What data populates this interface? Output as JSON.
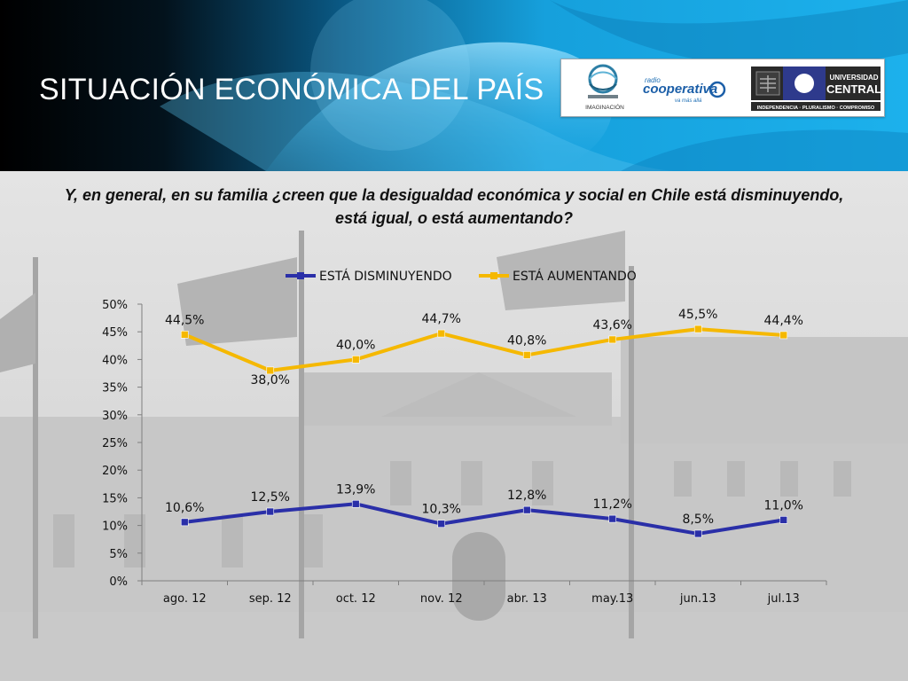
{
  "slide": {
    "title": "SITUACIÓN ECONÓMICA DEL PAÍS",
    "question": "Y, en general, en su familia ¿creen que la desigualdad económica y social en Chile está disminuyendo, está igual, o está aumentando?"
  },
  "logos": {
    "imaginacion": "IMAGINACIÓN",
    "cooperativa_radio": "radio",
    "cooperativa_name": "cooperativa",
    "cooperativa_tagline": "va más allá",
    "universidad_1": "UNIVERSIDAD",
    "universidad_2": "CENTRAL",
    "universidad_motto": "INDEPENDENCIA · PLURALISMO · COMPROMISO"
  },
  "colors": {
    "series_decreasing": "#2a2fa8",
    "series_increasing": "#f5b800",
    "header_blue": "#1aa3e0"
  },
  "chart_data": {
    "type": "line",
    "categories": [
      "ago. 12",
      "sep. 12",
      "oct. 12",
      "nov. 12",
      "abr. 13",
      "may.13",
      "jun.13",
      "jul.13"
    ],
    "series": [
      {
        "name": "ESTÁ DISMINUYENDO",
        "values": [
          10.6,
          12.5,
          13.9,
          10.3,
          12.8,
          11.2,
          8.5,
          11.0
        ],
        "labels": [
          "10,6%",
          "12,5%",
          "13,9%",
          "10,3%",
          "12,8%",
          "11,2%",
          "8,5%",
          "11,0%"
        ]
      },
      {
        "name": "ESTÁ AUMENTANDO",
        "values": [
          44.5,
          38.0,
          40.0,
          44.7,
          40.8,
          43.6,
          45.5,
          44.4
        ],
        "labels": [
          "44,5%",
          "38,0%",
          "40,0%",
          "44,7%",
          "40,8%",
          "43,6%",
          "45,5%",
          "44,4%"
        ]
      }
    ],
    "yticks": [
      "0%",
      "5%",
      "10%",
      "15%",
      "20%",
      "25%",
      "30%",
      "35%",
      "40%",
      "45%",
      "50%"
    ],
    "ylim": [
      0,
      50
    ],
    "legend": "top",
    "grid": false
  }
}
